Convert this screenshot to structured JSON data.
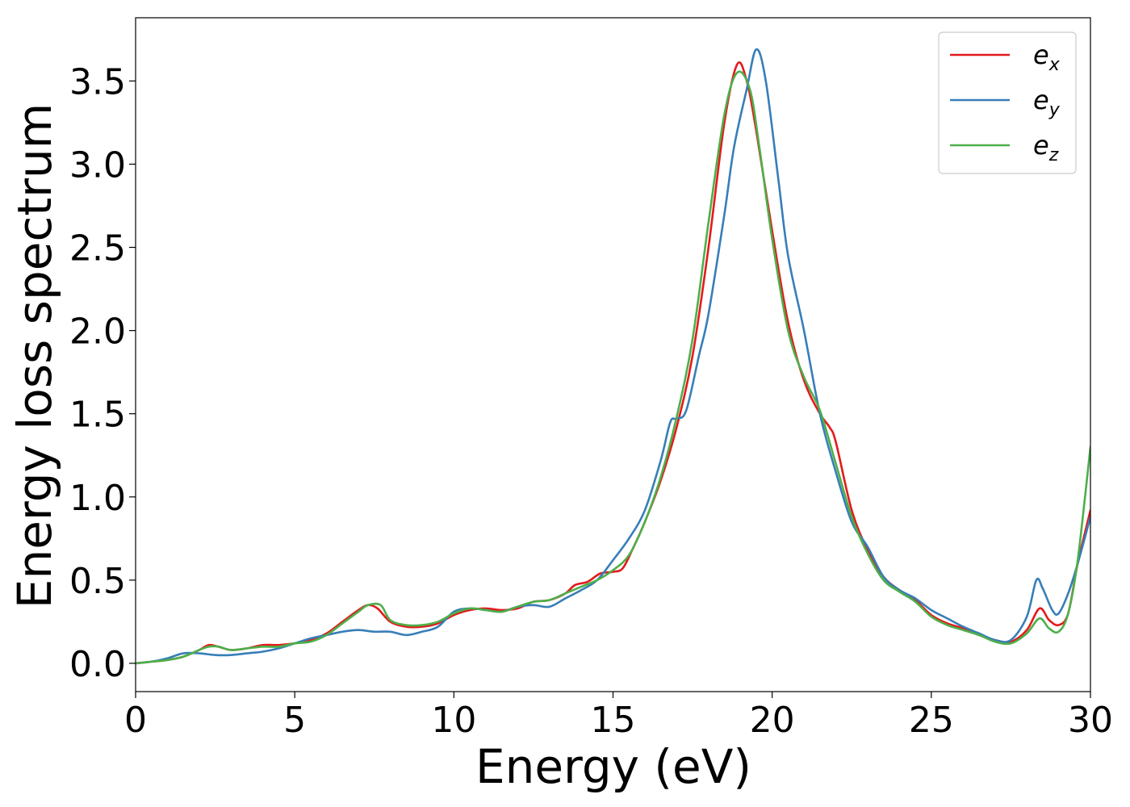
{
  "chart_data": {
    "type": "line",
    "title": "",
    "xlabel": "Energy (eV)",
    "ylabel": "Energy loss spectrum",
    "xlim": [
      0,
      30
    ],
    "ylim": [
      -0.17,
      3.88
    ],
    "xticks": [
      0,
      5,
      10,
      15,
      20,
      25,
      30
    ],
    "xtick_labels": [
      "0",
      "5",
      "10",
      "15",
      "20",
      "25",
      "30"
    ],
    "yticks": [
      0.0,
      0.5,
      1.0,
      1.5,
      2.0,
      2.5,
      3.0,
      3.5
    ],
    "ytick_labels": [
      "0.0",
      "0.5",
      "1.0",
      "1.5",
      "2.0",
      "2.5",
      "3.0",
      "3.5"
    ],
    "grid": false,
    "legend_position": "top-right",
    "series": [
      {
        "name": "e_x",
        "legend_base": "e",
        "legend_sub": "x",
        "color": "#e41a1c",
        "points": [
          [
            0,
            0
          ],
          [
            0.5,
            0.01
          ],
          [
            1,
            0.02
          ],
          [
            1.5,
            0.04
          ],
          [
            2,
            0.08
          ],
          [
            2.3,
            0.11
          ],
          [
            2.6,
            0.1
          ],
          [
            3,
            0.08
          ],
          [
            3.5,
            0.09
          ],
          [
            4,
            0.11
          ],
          [
            4.5,
            0.11
          ],
          [
            5,
            0.12
          ],
          [
            5.5,
            0.14
          ],
          [
            6,
            0.18
          ],
          [
            6.5,
            0.25
          ],
          [
            7,
            0.32
          ],
          [
            7.3,
            0.35
          ],
          [
            7.6,
            0.33
          ],
          [
            8,
            0.25
          ],
          [
            8.5,
            0.22
          ],
          [
            9,
            0.22
          ],
          [
            9.5,
            0.24
          ],
          [
            10,
            0.29
          ],
          [
            10.5,
            0.32
          ],
          [
            11,
            0.33
          ],
          [
            11.5,
            0.32
          ],
          [
            12,
            0.33
          ],
          [
            12.5,
            0.37
          ],
          [
            13,
            0.38
          ],
          [
            13.5,
            0.42
          ],
          [
            13.8,
            0.47
          ],
          [
            14.2,
            0.49
          ],
          [
            14.6,
            0.54
          ],
          [
            15,
            0.55
          ],
          [
            15.3,
            0.57
          ],
          [
            15.6,
            0.68
          ],
          [
            16,
            0.85
          ],
          [
            16.5,
            1.1
          ],
          [
            17,
            1.42
          ],
          [
            17.5,
            1.85
          ],
          [
            18,
            2.5
          ],
          [
            18.5,
            3.25
          ],
          [
            18.9,
            3.6
          ],
          [
            19.2,
            3.5
          ],
          [
            19.5,
            3.2
          ],
          [
            20,
            2.6
          ],
          [
            20.5,
            2.05
          ],
          [
            21,
            1.7
          ],
          [
            21.5,
            1.5
          ],
          [
            21.8,
            1.42
          ],
          [
            22,
            1.33
          ],
          [
            22.5,
            0.92
          ],
          [
            23,
            0.68
          ],
          [
            23.5,
            0.52
          ],
          [
            24,
            0.44
          ],
          [
            24.5,
            0.38
          ],
          [
            25,
            0.29
          ],
          [
            25.5,
            0.24
          ],
          [
            26,
            0.21
          ],
          [
            26.5,
            0.17
          ],
          [
            27,
            0.14
          ],
          [
            27.5,
            0.13
          ],
          [
            28,
            0.2
          ],
          [
            28.4,
            0.33
          ],
          [
            28.7,
            0.26
          ],
          [
            29,
            0.23
          ],
          [
            29.3,
            0.3
          ],
          [
            29.6,
            0.6
          ],
          [
            30,
            0.92
          ]
        ]
      },
      {
        "name": "e_y",
        "legend_base": "e",
        "legend_sub": "y",
        "color": "#377eb8",
        "points": [
          [
            0,
            0
          ],
          [
            0.5,
            0.01
          ],
          [
            1,
            0.03
          ],
          [
            1.5,
            0.06
          ],
          [
            2,
            0.06
          ],
          [
            2.5,
            0.05
          ],
          [
            3,
            0.05
          ],
          [
            3.5,
            0.06
          ],
          [
            4,
            0.07
          ],
          [
            4.5,
            0.09
          ],
          [
            5,
            0.12
          ],
          [
            5.5,
            0.15
          ],
          [
            6,
            0.17
          ],
          [
            6.5,
            0.19
          ],
          [
            7,
            0.2
          ],
          [
            7.5,
            0.19
          ],
          [
            8,
            0.19
          ],
          [
            8.5,
            0.17
          ],
          [
            9,
            0.19
          ],
          [
            9.5,
            0.22
          ],
          [
            10,
            0.31
          ],
          [
            10.5,
            0.33
          ],
          [
            11,
            0.32
          ],
          [
            11.5,
            0.31
          ],
          [
            12,
            0.34
          ],
          [
            12.5,
            0.35
          ],
          [
            13,
            0.34
          ],
          [
            13.5,
            0.39
          ],
          [
            14,
            0.44
          ],
          [
            14.5,
            0.5
          ],
          [
            15,
            0.62
          ],
          [
            15.5,
            0.75
          ],
          [
            16,
            0.92
          ],
          [
            16.5,
            1.22
          ],
          [
            16.8,
            1.45
          ],
          [
            17,
            1.47
          ],
          [
            17.3,
            1.52
          ],
          [
            17.7,
            1.85
          ],
          [
            18,
            2.1
          ],
          [
            18.5,
            2.7
          ],
          [
            18.8,
            3.1
          ],
          [
            19.2,
            3.45
          ],
          [
            19.5,
            3.69
          ],
          [
            19.8,
            3.5
          ],
          [
            20.2,
            2.9
          ],
          [
            20.5,
            2.45
          ],
          [
            21,
            2.0
          ],
          [
            21.5,
            1.5
          ],
          [
            22,
            1.15
          ],
          [
            22.5,
            0.85
          ],
          [
            23,
            0.7
          ],
          [
            23.5,
            0.52
          ],
          [
            24,
            0.44
          ],
          [
            24.5,
            0.39
          ],
          [
            25,
            0.32
          ],
          [
            25.5,
            0.27
          ],
          [
            26,
            0.22
          ],
          [
            26.5,
            0.18
          ],
          [
            27,
            0.14
          ],
          [
            27.5,
            0.14
          ],
          [
            28,
            0.28
          ],
          [
            28.3,
            0.5
          ],
          [
            28.5,
            0.45
          ],
          [
            28.8,
            0.32
          ],
          [
            29,
            0.3
          ],
          [
            29.3,
            0.42
          ],
          [
            29.6,
            0.6
          ],
          [
            30,
            0.88
          ]
        ]
      },
      {
        "name": "e_z",
        "legend_base": "e",
        "legend_sub": "z",
        "color": "#4daf4a",
        "points": [
          [
            0,
            0
          ],
          [
            0.5,
            0.01
          ],
          [
            1,
            0.02
          ],
          [
            1.5,
            0.04
          ],
          [
            2,
            0.08
          ],
          [
            2.3,
            0.1
          ],
          [
            2.6,
            0.1
          ],
          [
            3,
            0.08
          ],
          [
            3.5,
            0.09
          ],
          [
            4,
            0.1
          ],
          [
            4.5,
            0.1
          ],
          [
            5,
            0.12
          ],
          [
            5.5,
            0.13
          ],
          [
            6,
            0.17
          ],
          [
            6.5,
            0.24
          ],
          [
            7,
            0.31
          ],
          [
            7.3,
            0.35
          ],
          [
            7.7,
            0.35
          ],
          [
            8,
            0.26
          ],
          [
            8.5,
            0.23
          ],
          [
            9,
            0.23
          ],
          [
            9.5,
            0.25
          ],
          [
            10,
            0.3
          ],
          [
            10.5,
            0.33
          ],
          [
            11,
            0.32
          ],
          [
            11.5,
            0.31
          ],
          [
            12,
            0.34
          ],
          [
            12.5,
            0.37
          ],
          [
            13,
            0.38
          ],
          [
            13.5,
            0.42
          ],
          [
            14,
            0.46
          ],
          [
            14.5,
            0.5
          ],
          [
            15,
            0.56
          ],
          [
            15.5,
            0.65
          ],
          [
            16,
            0.85
          ],
          [
            16.5,
            1.12
          ],
          [
            17,
            1.48
          ],
          [
            17.5,
            1.95
          ],
          [
            18,
            2.65
          ],
          [
            18.5,
            3.3
          ],
          [
            18.9,
            3.55
          ],
          [
            19.3,
            3.45
          ],
          [
            19.6,
            3.1
          ],
          [
            20,
            2.55
          ],
          [
            20.5,
            2.0
          ],
          [
            21,
            1.72
          ],
          [
            21.5,
            1.52
          ],
          [
            22,
            1.2
          ],
          [
            22.5,
            0.88
          ],
          [
            23,
            0.66
          ],
          [
            23.5,
            0.5
          ],
          [
            24,
            0.43
          ],
          [
            24.5,
            0.37
          ],
          [
            25,
            0.28
          ],
          [
            25.5,
            0.23
          ],
          [
            26,
            0.2
          ],
          [
            26.5,
            0.17
          ],
          [
            27,
            0.13
          ],
          [
            27.5,
            0.12
          ],
          [
            28,
            0.18
          ],
          [
            28.4,
            0.27
          ],
          [
            28.7,
            0.21
          ],
          [
            29,
            0.19
          ],
          [
            29.3,
            0.3
          ],
          [
            29.6,
            0.62
          ],
          [
            30,
            1.3
          ]
        ]
      }
    ]
  }
}
